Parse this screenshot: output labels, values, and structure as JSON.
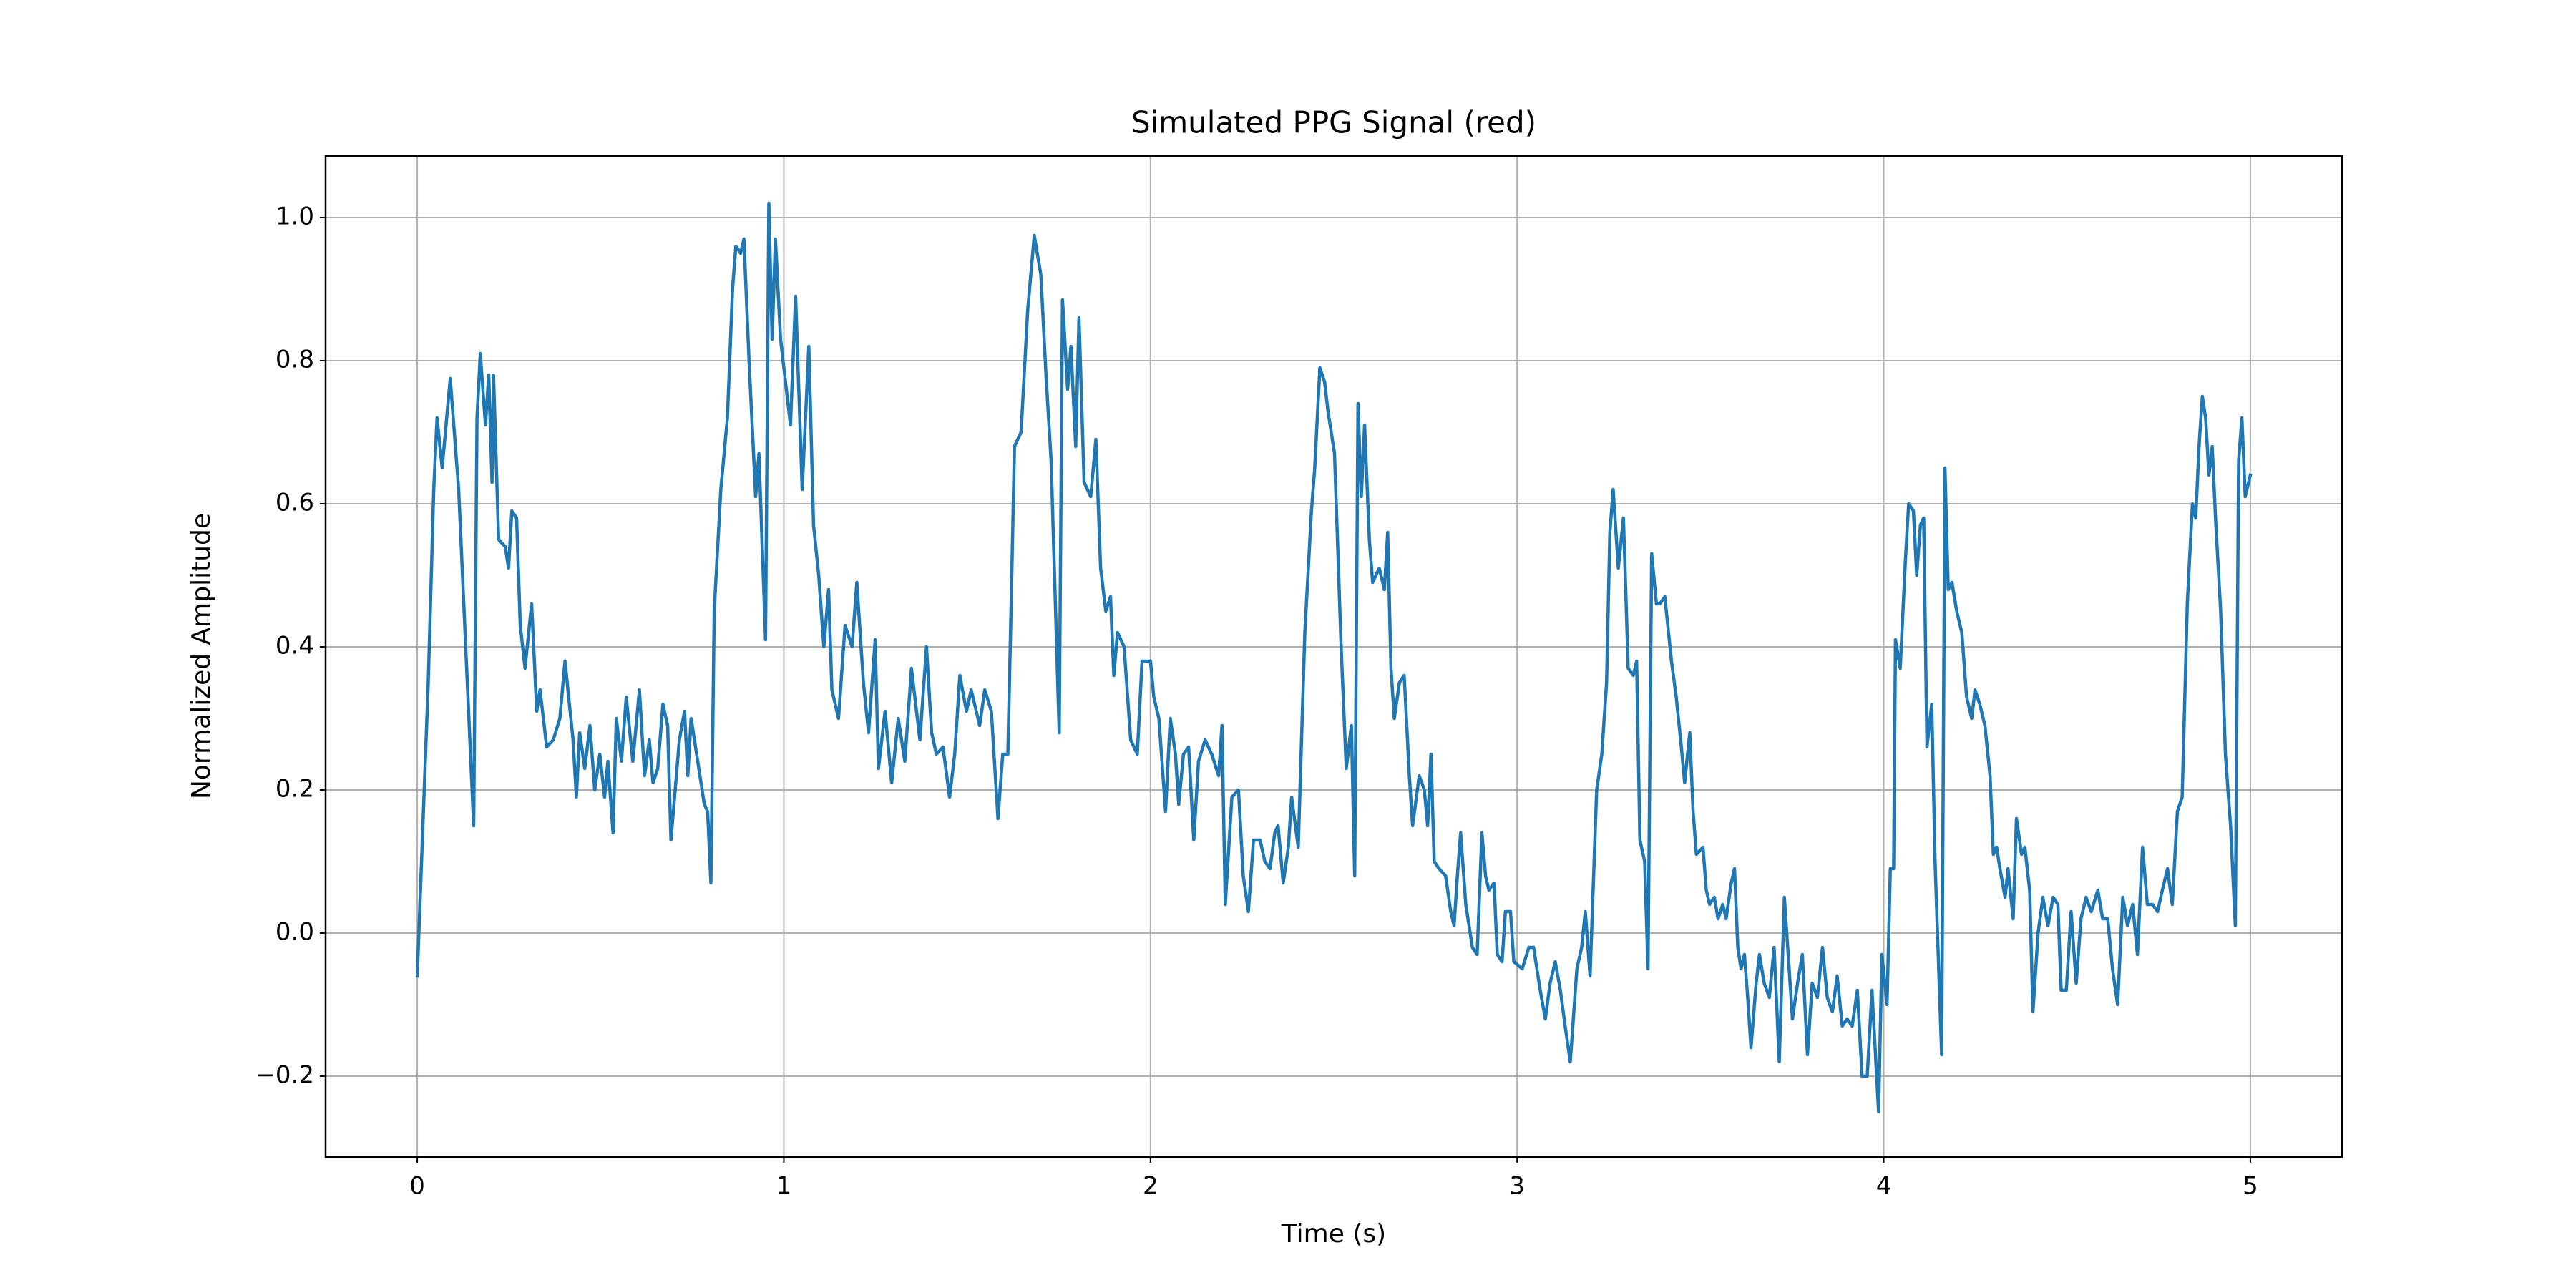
{
  "chart_data": {
    "type": "line",
    "title": "Simulated PPG Signal (red)",
    "x_label": "Time (s)",
    "y_label": "Normalized Amplitude",
    "color": "#1f77b4",
    "grid": true,
    "xlim": [
      -0.25,
      5.25
    ],
    "ylim": [
      -0.313,
      1.086
    ],
    "xticks": [
      0,
      1,
      2,
      3,
      4,
      5
    ],
    "yticks": [
      {
        "value": -0.2,
        "label": "−0.2"
      },
      {
        "value": 0.0,
        "label": "0.0"
      },
      {
        "value": 0.2,
        "label": "0.2"
      },
      {
        "value": 0.4,
        "label": "0.4"
      },
      {
        "value": 0.6,
        "label": "0.6"
      },
      {
        "value": 0.8,
        "label": "0.8"
      },
      {
        "value": 1.0,
        "label": "1.0"
      }
    ],
    "x": [
      0,
      0.03,
      0.045,
      0.054,
      0.068,
      0.09,
      0.113,
      0.154,
      0.163,
      0.172,
      0.186,
      0.195,
      0.204,
      0.208,
      0.222,
      0.24,
      0.249,
      0.258,
      0.271,
      0.281,
      0.294,
      0.312,
      0.326,
      0.335,
      0.353,
      0.371,
      0.389,
      0.403,
      0.425,
      0.434,
      0.443,
      0.457,
      0.471,
      0.484,
      0.498,
      0.511,
      0.52,
      0.534,
      0.543,
      0.557,
      0.57,
      0.588,
      0.606,
      0.62,
      0.633,
      0.643,
      0.656,
      0.67,
      0.683,
      0.692,
      0.715,
      0.729,
      0.738,
      0.747,
      0.765,
      0.783,
      0.792,
      0.801,
      0.81,
      0.828,
      0.846,
      0.86,
      0.869,
      0.882,
      0.891,
      0.905,
      0.923,
      0.932,
      0.95,
      0.959,
      0.968,
      0.977,
      0.991,
      1.018,
      1.032,
      1.05,
      1.068,
      1.081,
      1.095,
      1.109,
      1.122,
      1.131,
      1.149,
      1.167,
      1.186,
      1.199,
      1.217,
      1.231,
      1.249,
      1.258,
      1.276,
      1.294,
      1.312,
      1.33,
      1.348,
      1.371,
      1.389,
      1.403,
      1.416,
      1.434,
      1.452,
      1.466,
      1.48,
      1.498,
      1.511,
      1.534,
      1.548,
      1.566,
      1.584,
      1.597,
      1.611,
      1.62,
      1.629,
      1.647,
      1.665,
      1.683,
      1.701,
      1.715,
      1.729,
      1.751,
      1.76,
      1.774,
      1.783,
      1.796,
      1.805,
      1.819,
      1.837,
      1.851,
      1.864,
      1.878,
      1.891,
      1.9,
      1.91,
      1.928,
      1.946,
      1.964,
      1.977,
      2.0,
      2.009,
      2.023,
      2.041,
      2.054,
      2.068,
      2.077,
      2.09,
      2.104,
      2.118,
      2.131,
      2.149,
      2.167,
      2.186,
      2.195,
      2.204,
      2.222,
      2.24,
      2.253,
      2.267,
      2.281,
      2.299,
      2.312,
      2.326,
      2.339,
      2.348,
      2.362,
      2.376,
      2.385,
      2.403,
      2.421,
      2.439,
      2.448,
      2.462,
      2.475,
      2.484,
      2.502,
      2.52,
      2.534,
      2.548,
      2.557,
      2.566,
      2.575,
      2.584,
      2.597,
      2.606,
      2.624,
      2.638,
      2.647,
      2.656,
      2.665,
      2.679,
      2.692,
      2.706,
      2.715,
      2.733,
      2.747,
      2.756,
      2.765,
      2.774,
      2.787,
      2.805,
      2.819,
      2.828,
      2.837,
      2.846,
      2.86,
      2.878,
      2.891,
      2.904,
      2.914,
      2.923,
      2.937,
      2.946,
      2.959,
      2.968,
      2.982,
      2.991,
      3.014,
      3.032,
      3.045,
      3.063,
      3.077,
      3.09,
      3.104,
      3.118,
      3.131,
      3.145,
      3.163,
      3.176,
      3.186,
      3.199,
      3.217,
      3.231,
      3.244,
      3.253,
      3.262,
      3.276,
      3.29,
      3.303,
      3.317,
      3.326,
      3.335,
      3.348,
      3.357,
      3.367,
      3.38,
      3.389,
      3.403,
      3.421,
      3.434,
      3.448,
      3.457,
      3.471,
      3.48,
      3.489,
      3.507,
      3.516,
      3.525,
      3.538,
      3.548,
      3.561,
      3.57,
      3.584,
      3.593,
      3.602,
      3.611,
      3.62,
      3.629,
      3.638,
      3.652,
      3.661,
      3.674,
      3.688,
      3.701,
      3.715,
      3.729,
      3.742,
      3.751,
      3.765,
      3.778,
      3.792,
      3.805,
      3.819,
      3.833,
      3.846,
      3.86,
      3.873,
      3.887,
      3.9,
      3.914,
      3.928,
      3.941,
      3.955,
      3.968,
      3.986,
      3.995,
      4.009,
      4.018,
      4.027,
      4.032,
      4.045,
      4.059,
      4.068,
      4.081,
      4.09,
      4.1,
      4.109,
      4.118,
      4.131,
      4.14,
      4.158,
      4.167,
      4.176,
      4.186,
      4.199,
      4.213,
      4.226,
      4.24,
      4.249,
      4.262,
      4.276,
      4.29,
      4.299,
      4.308,
      4.317,
      4.331,
      4.339,
      4.353,
      4.362,
      4.376,
      4.385,
      4.398,
      4.407,
      4.421,
      4.434,
      4.448,
      4.462,
      4.475,
      4.484,
      4.498,
      4.511,
      4.525,
      4.538,
      4.552,
      4.566,
      4.584,
      4.597,
      4.611,
      4.624,
      4.638,
      4.652,
      4.665,
      4.679,
      4.692,
      4.706,
      4.719,
      4.733,
      4.747,
      4.76,
      4.774,
      4.787,
      4.801,
      4.814,
      4.828,
      4.842,
      4.851,
      4.86,
      4.869,
      4.878,
      4.887,
      4.896,
      4.905,
      4.919,
      4.932,
      4.946,
      4.959,
      4.968,
      4.977,
      4.986,
      5.0
    ],
    "values": [
      -0.06,
      0.35,
      0.62,
      0.72,
      0.65,
      0.775,
      0.62,
      0.15,
      0.72,
      0.81,
      0.71,
      0.78,
      0.63,
      0.78,
      0.55,
      0.54,
      0.51,
      0.59,
      0.58,
      0.43,
      0.37,
      0.46,
      0.31,
      0.34,
      0.26,
      0.27,
      0.3,
      0.38,
      0.27,
      0.19,
      0.28,
      0.23,
      0.29,
      0.2,
      0.25,
      0.19,
      0.24,
      0.14,
      0.3,
      0.24,
      0.33,
      0.24,
      0.34,
      0.22,
      0.27,
      0.21,
      0.23,
      0.32,
      0.29,
      0.13,
      0.27,
      0.31,
      0.22,
      0.3,
      0.24,
      0.18,
      0.17,
      0.07,
      0.45,
      0.62,
      0.72,
      0.9,
      0.96,
      0.95,
      0.97,
      0.8,
      0.61,
      0.67,
      0.41,
      1.02,
      0.83,
      0.97,
      0.83,
      0.71,
      0.89,
      0.62,
      0.82,
      0.57,
      0.5,
      0.4,
      0.48,
      0.34,
      0.3,
      0.43,
      0.4,
      0.49,
      0.35,
      0.28,
      0.41,
      0.23,
      0.31,
      0.21,
      0.3,
      0.24,
      0.37,
      0.27,
      0.4,
      0.28,
      0.25,
      0.26,
      0.19,
      0.25,
      0.36,
      0.31,
      0.34,
      0.29,
      0.34,
      0.31,
      0.16,
      0.25,
      0.25,
      0.46,
      0.68,
      0.7,
      0.87,
      0.975,
      0.92,
      0.78,
      0.66,
      0.28,
      0.885,
      0.76,
      0.82,
      0.68,
      0.86,
      0.63,
      0.61,
      0.69,
      0.51,
      0.45,
      0.47,
      0.36,
      0.42,
      0.4,
      0.27,
      0.25,
      0.38,
      0.38,
      0.33,
      0.3,
      0.17,
      0.3,
      0.25,
      0.18,
      0.25,
      0.26,
      0.13,
      0.24,
      0.27,
      0.25,
      0.22,
      0.29,
      0.04,
      0.19,
      0.2,
      0.08,
      0.03,
      0.13,
      0.13,
      0.1,
      0.09,
      0.14,
      0.15,
      0.07,
      0.12,
      0.19,
      0.12,
      0.42,
      0.59,
      0.65,
      0.79,
      0.77,
      0.73,
      0.67,
      0.4,
      0.23,
      0.29,
      0.08,
      0.74,
      0.61,
      0.71,
      0.55,
      0.49,
      0.51,
      0.48,
      0.56,
      0.37,
      0.3,
      0.35,
      0.36,
      0.22,
      0.15,
      0.22,
      0.2,
      0.15,
      0.25,
      0.1,
      0.09,
      0.08,
      0.03,
      0.01,
      0.08,
      0.14,
      0.04,
      -0.02,
      -0.03,
      0.14,
      0.08,
      0.06,
      0.07,
      -0.03,
      -0.04,
      0.03,
      0.03,
      -0.04,
      -0.05,
      -0.02,
      -0.02,
      -0.08,
      -0.12,
      -0.07,
      -0.04,
      -0.08,
      -0.13,
      -0.18,
      -0.05,
      -0.02,
      0.03,
      -0.06,
      0.2,
      0.25,
      0.35,
      0.56,
      0.62,
      0.51,
      0.58,
      0.37,
      0.36,
      0.38,
      0.13,
      0.1,
      -0.05,
      0.53,
      0.46,
      0.46,
      0.47,
      0.38,
      0.33,
      0.26,
      0.21,
      0.28,
      0.17,
      0.11,
      0.12,
      0.06,
      0.04,
      0.05,
      0.02,
      0.04,
      0.02,
      0.07,
      0.09,
      -0.02,
      -0.05,
      -0.03,
      -0.09,
      -0.16,
      -0.07,
      -0.03,
      -0.07,
      -0.09,
      -0.02,
      -0.18,
      0.05,
      -0.05,
      -0.12,
      -0.07,
      -0.03,
      -0.17,
      -0.07,
      -0.09,
      -0.02,
      -0.09,
      -0.11,
      -0.06,
      -0.13,
      -0.12,
      -0.13,
      -0.08,
      -0.2,
      -0.2,
      -0.08,
      -0.25,
      -0.03,
      -0.1,
      0.09,
      0.09,
      0.41,
      0.37,
      0.52,
      0.6,
      0.59,
      0.5,
      0.57,
      0.58,
      0.26,
      0.32,
      0.1,
      -0.17,
      0.65,
      0.48,
      0.49,
      0.45,
      0.42,
      0.33,
      0.3,
      0.34,
      0.32,
      0.29,
      0.22,
      0.11,
      0.12,
      0.09,
      0.05,
      0.09,
      0.02,
      0.16,
      0.11,
      0.12,
      0.06,
      -0.11,
      0.0,
      0.05,
      0.01,
      0.05,
      0.04,
      -0.08,
      -0.08,
      0.03,
      -0.07,
      0.02,
      0.05,
      0.03,
      0.06,
      0.02,
      0.02,
      -0.05,
      -0.1,
      0.05,
      0.01,
      0.04,
      -0.03,
      0.12,
      0.04,
      0.04,
      0.03,
      0.06,
      0.09,
      0.04,
      0.17,
      0.19,
      0.46,
      0.6,
      0.58,
      0.68,
      0.75,
      0.72,
      0.64,
      0.68,
      0.58,
      0.45,
      0.25,
      0.15,
      0.01,
      0.66,
      0.72,
      0.61,
      0.64
    ]
  }
}
